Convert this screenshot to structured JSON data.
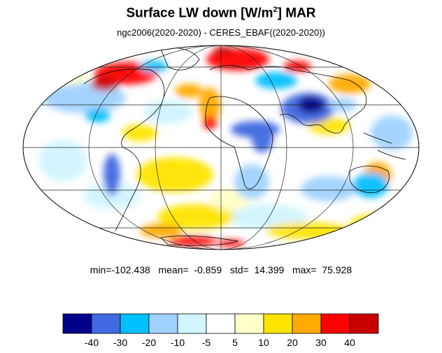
{
  "title": {
    "main": "Surface LW down [W/m",
    "superscript": "2",
    "suffix": "]  MAR"
  },
  "subtitle": "ngc2006(2020-2020) - CERES_EBAF((2020-2020))",
  "stats": {
    "min_label": "min=",
    "min": "-102.438",
    "mean_label": "mean=",
    "mean": "-0.859",
    "std_label": "std=",
    "std": "14.399",
    "max_label": "max=",
    "max": "75.928"
  },
  "colorbar": {
    "colors": [
      "#00008b",
      "#4169e1",
      "#00bfff",
      "#a0d2ff",
      "#d2f5ff",
      "#ffffff",
      "#ffffc8",
      "#ffe400",
      "#ffaa00",
      "#ff0000",
      "#c80000"
    ],
    "tick_labels": [
      "-40",
      "-30",
      "-20",
      "-10",
      "-5",
      "5",
      "10",
      "20",
      "30",
      "40"
    ]
  },
  "map": {
    "projection": "mollweide",
    "graticule_lat": [
      -60,
      -30,
      0,
      30,
      60
    ],
    "graticule_lon": [
      -120,
      -60,
      0,
      60,
      120
    ]
  }
}
